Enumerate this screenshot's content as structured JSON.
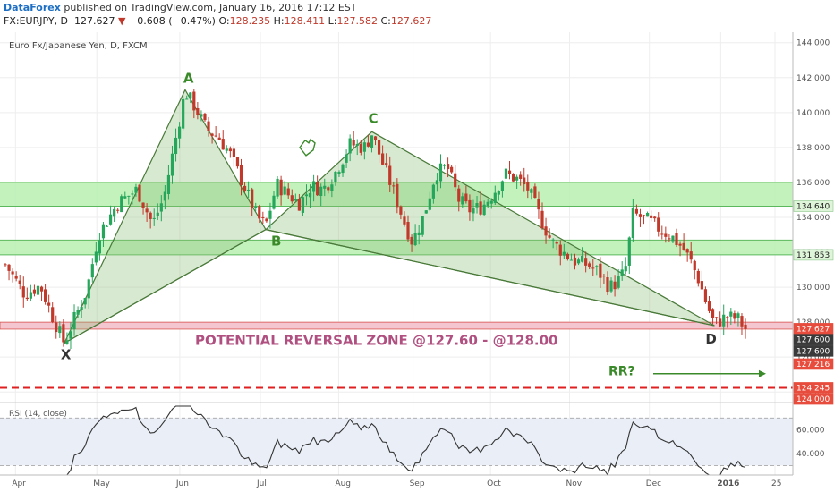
{
  "header": {
    "brand": "DataForex",
    "published": " published on TradingView.com, January 16, 2016 17:12 EST",
    "symbol": "FX:EURJPY, D",
    "last": "127.627",
    "arrow": "▼",
    "change": "−0.608 (−0.47%)",
    "o_label": "O:",
    "o": "128.235",
    "h_label": "H:",
    "h": "128.411",
    "l_label": "L:",
    "l": "127.582",
    "c_label": "C:",
    "c": "127.627"
  },
  "chart_data": {
    "type": "candlestick",
    "title": "Euro Fx/Japanese Yen, D, FXCM",
    "ylim": [
      123.5,
      144.6
    ],
    "y_ticks": [
      124,
      126,
      128,
      130,
      132,
      134,
      136,
      138,
      140,
      142,
      144
    ],
    "x_ticks": [
      "Apr",
      "May",
      "Jun",
      "Jul",
      "Aug",
      "Sep",
      "Oct",
      "Nov",
      "Dec",
      "2016",
      "25"
    ],
    "price_labels": [
      {
        "value": "134.640",
        "color": "#ffffff",
        "bg": "#dff5d9",
        "text_color": "#222222"
      },
      {
        "value": "131.853",
        "color": "#ffffff",
        "bg": "#dff5d9",
        "text_color": "#222222"
      },
      {
        "value": "127.627",
        "bg": "#e74c3c",
        "text_color": "#ffffff"
      },
      {
        "value": "127.600",
        "bg": "#3a3a3a",
        "text_color": "#ffffff"
      },
      {
        "value": "127.600",
        "bg": "#3a3a3a",
        "text_color": "#ffffff"
      },
      {
        "value": "127.216",
        "bg": "#e74c3c",
        "text_color": "#ffffff"
      },
      {
        "value": "124.245",
        "bg": "#e74c3c",
        "text_color": "#ffffff"
      },
      {
        "value": "124.000",
        "bg": "#e74c3c",
        "text_color": "#ffffff"
      }
    ],
    "zones": [
      {
        "from": 134.64,
        "to": 136.0,
        "color": "#b9f0b1"
      },
      {
        "from": 131.853,
        "to": 132.7,
        "color": "#b9f0b1"
      }
    ],
    "reversal_zone": {
      "from": 127.6,
      "to": 128.0
    },
    "dashed_level": 124.245,
    "pattern": {
      "points": [
        {
          "name": "X",
          "t": 0.076,
          "price": 126.8
        },
        {
          "name": "A",
          "t": 0.232,
          "price": 141.3
        },
        {
          "name": "B",
          "t": 0.336,
          "price": 133.3
        },
        {
          "name": "C",
          "t": 0.473,
          "price": 138.9
        },
        {
          "name": "D",
          "t": 0.915,
          "price": 127.8
        }
      ]
    },
    "annotations": {
      "zone_text": "POTENTIAL REVERSAL ZONE @127.60 - @128.00",
      "rr_text": "RR?"
    },
    "waypoints": [
      [
        0.0,
        131.3
      ],
      [
        0.025,
        129.6
      ],
      [
        0.045,
        130.1
      ],
      [
        0.062,
        128.2
      ],
      [
        0.076,
        126.8
      ],
      [
        0.09,
        128.3
      ],
      [
        0.105,
        129.8
      ],
      [
        0.12,
        133.0
      ],
      [
        0.145,
        134.8
      ],
      [
        0.17,
        135.6
      ],
      [
        0.19,
        133.6
      ],
      [
        0.205,
        135.2
      ],
      [
        0.222,
        139.0
      ],
      [
        0.232,
        141.2
      ],
      [
        0.245,
        140.3
      ],
      [
        0.26,
        139.0
      ],
      [
        0.275,
        138.6
      ],
      [
        0.29,
        137.6
      ],
      [
        0.31,
        135.6
      ],
      [
        0.325,
        134.0
      ],
      [
        0.336,
        133.5
      ],
      [
        0.35,
        135.9
      ],
      [
        0.365,
        135.3
      ],
      [
        0.38,
        134.8
      ],
      [
        0.395,
        135.8
      ],
      [
        0.41,
        135.6
      ],
      [
        0.425,
        136.5
      ],
      [
        0.445,
        138.2
      ],
      [
        0.463,
        138.0
      ],
      [
        0.473,
        138.8
      ],
      [
        0.485,
        137.3
      ],
      [
        0.5,
        135.6
      ],
      [
        0.515,
        133.7
      ],
      [
        0.525,
        132.6
      ],
      [
        0.54,
        134.1
      ],
      [
        0.555,
        136.5
      ],
      [
        0.57,
        136.9
      ],
      [
        0.585,
        135.0
      ],
      [
        0.6,
        134.4
      ],
      [
        0.615,
        134.6
      ],
      [
        0.63,
        135.4
      ],
      [
        0.645,
        136.5
      ],
      [
        0.66,
        136.2
      ],
      [
        0.675,
        135.6
      ],
      [
        0.69,
        134.0
      ],
      [
        0.705,
        132.6
      ],
      [
        0.72,
        132.0
      ],
      [
        0.735,
        131.5
      ],
      [
        0.75,
        131.3
      ],
      [
        0.765,
        130.9
      ],
      [
        0.78,
        130.0
      ],
      [
        0.792,
        130.4
      ],
      [
        0.8,
        131.0
      ],
      [
        0.81,
        134.2
      ],
      [
        0.83,
        133.8
      ],
      [
        0.845,
        133.3
      ],
      [
        0.86,
        132.9
      ],
      [
        0.875,
        132.2
      ],
      [
        0.885,
        131.4
      ],
      [
        0.895,
        130.4
      ],
      [
        0.905,
        129.0
      ],
      [
        0.915,
        127.9
      ],
      [
        0.93,
        128.3
      ],
      [
        0.945,
        128.2
      ],
      [
        0.955,
        127.63
      ]
    ],
    "rsi": {
      "name": "RSI (14, close)",
      "ylim": [
        22,
        80
      ],
      "levels": [
        70,
        30
      ],
      "ticks": [
        40,
        60
      ],
      "tick_labels": [
        "40.000",
        "60.000"
      ]
    }
  },
  "colors": {
    "up": "#26a65b",
    "down": "#c0392b",
    "pattern_fill": "#8fbf7a",
    "pattern_stroke": "#4a7a3a",
    "label_green": "#3a8a2a",
    "zone_text": "#b05080",
    "dashed": "#e02020"
  }
}
